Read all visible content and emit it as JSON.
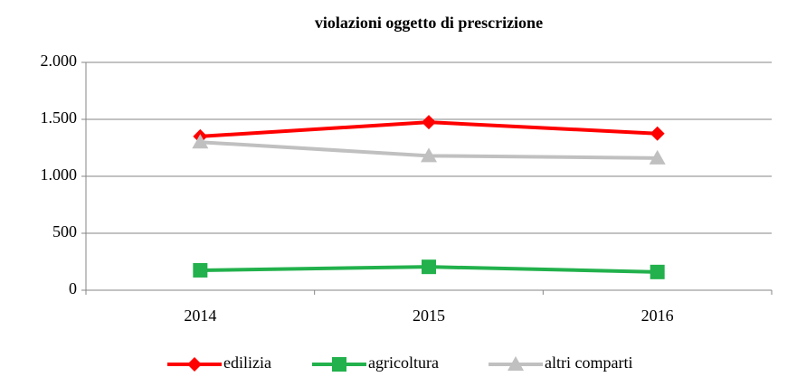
{
  "chart_data": {
    "type": "line",
    "title": "violazioni oggetto di prescrizione",
    "categories": [
      "2014",
      "2015",
      "2016"
    ],
    "series": [
      {
        "name": "edilizia",
        "color": "#ff0000",
        "marker": "diamond",
        "values": [
          1350,
          1475,
          1375
        ]
      },
      {
        "name": "agricoltura",
        "color": "#22b14c",
        "marker": "square",
        "values": [
          175,
          205,
          160
        ]
      },
      {
        "name": "altri comparti",
        "color": "#c0c0c0",
        "marker": "triangle",
        "values": [
          1300,
          1180,
          1160
        ]
      }
    ],
    "ylim": [
      0,
      2000
    ],
    "yticks": [
      0,
      500,
      {
        "value": 1000,
        "label": "1.000"
      },
      {
        "value": 1500,
        "label": "1.500"
      },
      {
        "value": 2000,
        "label": "2.000"
      }
    ],
    "grid": true,
    "legend": "bottom"
  }
}
